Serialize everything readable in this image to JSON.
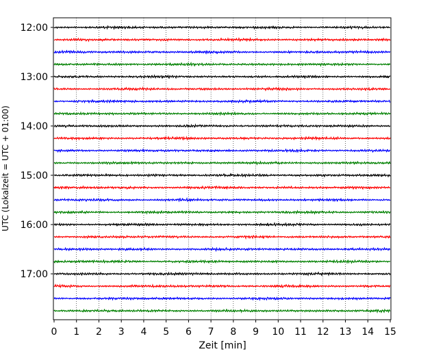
{
  "chart_data": {
    "type": "line",
    "title": "",
    "xlabel": "Zeit  [min]",
    "ylabel": "UTC (Lokalzeit = UTC + 01:00)",
    "xlim": [
      0,
      15
    ],
    "x_ticks": [
      "0",
      "1",
      "2",
      "3",
      "4",
      "5",
      "6",
      "7",
      "8",
      "9",
      "10",
      "11",
      "12",
      "13",
      "14",
      "15"
    ],
    "y_ticks": [
      "12:00",
      "13:00",
      "14:00",
      "15:00",
      "16:00",
      "17:00"
    ],
    "grid": "vertical dotted",
    "trace_colors": [
      "#000000",
      "#ff0000",
      "#0000ff",
      "#008000"
    ],
    "traces": [
      {
        "start": "12:00",
        "color": "#000000"
      },
      {
        "start": "12:15",
        "color": "#ff0000"
      },
      {
        "start": "12:30",
        "color": "#0000ff"
      },
      {
        "start": "12:45",
        "color": "#008000"
      },
      {
        "start": "13:00",
        "color": "#000000"
      },
      {
        "start": "13:15",
        "color": "#ff0000"
      },
      {
        "start": "13:30",
        "color": "#0000ff"
      },
      {
        "start": "13:45",
        "color": "#008000"
      },
      {
        "start": "14:00",
        "color": "#000000"
      },
      {
        "start": "14:15",
        "color": "#ff0000"
      },
      {
        "start": "14:30",
        "color": "#0000ff"
      },
      {
        "start": "14:45",
        "color": "#008000"
      },
      {
        "start": "15:00",
        "color": "#000000"
      },
      {
        "start": "15:15",
        "color": "#ff0000"
      },
      {
        "start": "15:30",
        "color": "#0000ff"
      },
      {
        "start": "15:45",
        "color": "#008000"
      },
      {
        "start": "16:00",
        "color": "#000000"
      },
      {
        "start": "16:15",
        "color": "#ff0000"
      },
      {
        "start": "16:30",
        "color": "#0000ff"
      },
      {
        "start": "16:45",
        "color": "#008000"
      },
      {
        "start": "17:00",
        "color": "#000000"
      },
      {
        "start": "17:15",
        "color": "#ff0000"
      },
      {
        "start": "17:30",
        "color": "#0000ff"
      },
      {
        "start": "17:45",
        "color": "#008000"
      }
    ]
  }
}
